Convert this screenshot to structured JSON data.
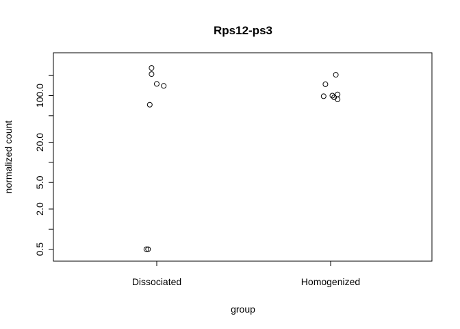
{
  "chart_data": {
    "type": "scatter",
    "title": "Rps12-ps3",
    "xlabel": "group",
    "ylabel": "normalized count",
    "y_scale": "log",
    "ylim": [
      0.42,
      330
    ],
    "y_ticks": [
      0.5,
      1,
      2,
      5,
      10,
      20,
      50,
      100,
      200
    ],
    "y_tick_labels": [
      "0.5",
      "",
      "2.0",
      "5.0",
      "",
      "20.0",
      "",
      "100.0",
      ""
    ],
    "categories": [
      "Dissociated",
      "Homogenized"
    ],
    "points": [
      {
        "group": "Dissociated",
        "jitter": -0.03,
        "y": 260
      },
      {
        "group": "Dissociated",
        "jitter": -0.03,
        "y": 210
      },
      {
        "group": "Dissociated",
        "jitter": 0.0,
        "y": 150
      },
      {
        "group": "Dissociated",
        "jitter": 0.04,
        "y": 140
      },
      {
        "group": "Dissociated",
        "jitter": -0.04,
        "y": 73
      },
      {
        "group": "Dissociated",
        "jitter": -0.06,
        "y": 0.5
      },
      {
        "group": "Dissociated",
        "jitter": -0.05,
        "y": 0.5
      },
      {
        "group": "Homogenized",
        "jitter": 0.03,
        "y": 205
      },
      {
        "group": "Homogenized",
        "jitter": -0.03,
        "y": 148
      },
      {
        "group": "Homogenized",
        "jitter": 0.04,
        "y": 104
      },
      {
        "group": "Homogenized",
        "jitter": 0.01,
        "y": 100
      },
      {
        "group": "Homogenized",
        "jitter": -0.04,
        "y": 98
      },
      {
        "group": "Homogenized",
        "jitter": 0.02,
        "y": 94
      },
      {
        "group": "Homogenized",
        "jitter": 0.04,
        "y": 88
      }
    ],
    "grid": false,
    "legend": "none"
  }
}
